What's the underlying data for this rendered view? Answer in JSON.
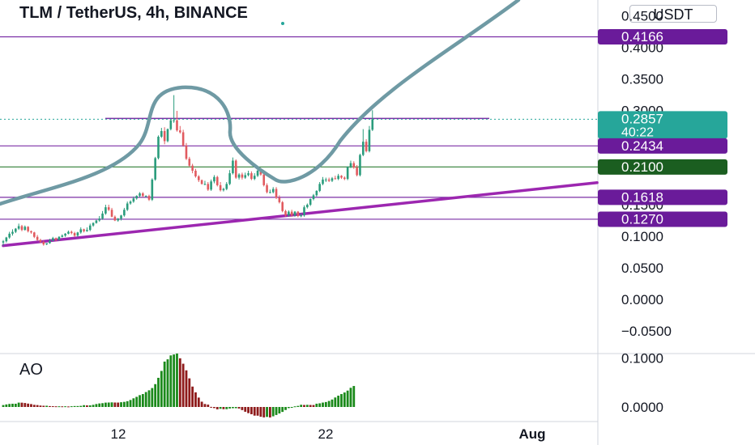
{
  "header": {
    "title": "TLM / TetherUS, 4h, BINANCE",
    "currency": "USDT",
    "indicator": "AO"
  },
  "colors": {
    "up": "#26a69a",
    "down": "#ef5350",
    "candle_up": "#2a9c7c",
    "candle_down": "#e15a5f",
    "purple_line": "#7b2fa6",
    "green_line": "#2e7d32",
    "trend_line": "#9c27b0",
    "drawing": "#6f9aa4",
    "ao_up": "#1b8a1b",
    "ao_down": "#8e1b1b"
  },
  "chart_data": [
    {
      "type": "candlestick",
      "title": "TLM / TetherUS, 4h, BINANCE",
      "ylim": [
        -0.085,
        0.475
      ],
      "y_ticks": [
        "0.4500",
        "0.4000",
        "0.3500",
        "0.3000",
        "0.1500",
        "0.1000",
        "0.0500",
        "0.0000",
        "−0.0500"
      ],
      "x_ticks": [
        "12",
        "22",
        "Aug"
      ],
      "price_labels": [
        {
          "value": 0.4166,
          "text": "0.4166",
          "style": "purple"
        },
        {
          "value": 0.2857,
          "text": "0.2857",
          "sub": "40:22",
          "style": "teal"
        },
        {
          "value": 0.2434,
          "text": "0.2434",
          "style": "purple"
        },
        {
          "value": 0.21,
          "text": "0.2100",
          "style": "green"
        },
        {
          "value": 0.1618,
          "text": "0.1618",
          "style": "purple"
        },
        {
          "value": 0.127,
          "text": "0.1270",
          "style": "purple"
        }
      ],
      "horizontal_lines": [
        {
          "value": 0.4166,
          "color": "purple"
        },
        {
          "value": 0.2434,
          "color": "purple"
        },
        {
          "value": 0.21,
          "color": "green"
        },
        {
          "value": 0.1618,
          "color": "purple"
        },
        {
          "value": 0.127,
          "color": "purple"
        }
      ],
      "neckline": 0.287,
      "current_price": 0.2857,
      "trendline": [
        [
          0,
          0.085
        ],
        [
          123,
          0.185
        ]
      ],
      "candles_open": [
        0.09,
        0.092,
        0.098,
        0.104,
        0.107,
        0.112,
        0.116,
        0.11,
        0.115,
        0.108,
        0.106,
        0.099,
        0.094,
        0.091,
        0.087,
        0.089,
        0.093,
        0.097,
        0.094,
        0.099,
        0.101,
        0.104,
        0.107,
        0.105,
        0.101,
        0.106,
        0.111,
        0.108,
        0.11,
        0.117,
        0.121,
        0.125,
        0.128,
        0.136,
        0.146,
        0.142,
        0.131,
        0.125,
        0.128,
        0.133,
        0.142,
        0.152,
        0.155,
        0.16,
        0.164,
        0.168,
        0.164,
        0.164,
        0.158,
        0.19,
        0.224,
        0.258,
        0.267,
        0.251,
        0.27,
        0.284,
        0.284,
        0.268,
        0.265,
        0.244,
        0.223,
        0.212,
        0.204,
        0.195,
        0.189,
        0.183,
        0.183,
        0.174,
        0.187,
        0.194,
        0.181,
        0.173,
        0.175,
        0.183,
        0.2,
        0.22,
        0.193,
        0.198,
        0.193,
        0.197,
        0.2,
        0.191,
        0.196,
        0.204,
        0.198,
        0.181,
        0.17,
        0.17,
        0.175,
        0.161,
        0.154,
        0.14,
        0.133,
        0.139,
        0.133,
        0.139,
        0.132,
        0.133,
        0.146,
        0.15,
        0.159,
        0.165,
        0.172,
        0.183,
        0.19,
        0.19,
        0.188,
        0.192,
        0.191,
        0.196,
        0.193,
        0.191,
        0.21,
        0.216,
        0.209,
        0.197,
        0.229,
        0.25,
        0.235,
        0.269
      ],
      "candles_close": [
        0.092,
        0.098,
        0.104,
        0.107,
        0.112,
        0.116,
        0.11,
        0.115,
        0.108,
        0.106,
        0.099,
        0.094,
        0.091,
        0.087,
        0.089,
        0.093,
        0.097,
        0.094,
        0.099,
        0.101,
        0.104,
        0.107,
        0.105,
        0.101,
        0.106,
        0.111,
        0.108,
        0.11,
        0.117,
        0.121,
        0.125,
        0.128,
        0.136,
        0.146,
        0.142,
        0.131,
        0.125,
        0.128,
        0.133,
        0.142,
        0.152,
        0.155,
        0.16,
        0.164,
        0.168,
        0.164,
        0.164,
        0.158,
        0.19,
        0.224,
        0.258,
        0.267,
        0.251,
        0.27,
        0.284,
        0.284,
        0.268,
        0.265,
        0.244,
        0.223,
        0.212,
        0.204,
        0.195,
        0.189,
        0.183,
        0.183,
        0.174,
        0.187,
        0.194,
        0.181,
        0.173,
        0.175,
        0.183,
        0.2,
        0.22,
        0.193,
        0.198,
        0.193,
        0.197,
        0.2,
        0.191,
        0.196,
        0.204,
        0.198,
        0.181,
        0.17,
        0.17,
        0.175,
        0.161,
        0.154,
        0.14,
        0.133,
        0.139,
        0.133,
        0.139,
        0.132,
        0.133,
        0.146,
        0.15,
        0.159,
        0.165,
        0.172,
        0.183,
        0.19,
        0.19,
        0.188,
        0.192,
        0.191,
        0.196,
        0.193,
        0.191,
        0.21,
        0.216,
        0.209,
        0.197,
        0.229,
        0.25,
        0.235,
        0.269,
        0.2857
      ],
      "candles_high": [
        0.094,
        0.099,
        0.107,
        0.111,
        0.113,
        0.12,
        0.118,
        0.117,
        0.116,
        0.109,
        0.107,
        0.102,
        0.096,
        0.093,
        0.089,
        0.096,
        0.099,
        0.098,
        0.1,
        0.103,
        0.105,
        0.109,
        0.109,
        0.107,
        0.107,
        0.114,
        0.112,
        0.114,
        0.12,
        0.122,
        0.126,
        0.132,
        0.14,
        0.15,
        0.15,
        0.145,
        0.133,
        0.129,
        0.134,
        0.145,
        0.155,
        0.157,
        0.163,
        0.165,
        0.17,
        0.17,
        0.165,
        0.166,
        0.192,
        0.226,
        0.26,
        0.272,
        0.273,
        0.271,
        0.286,
        0.324,
        0.299,
        0.275,
        0.269,
        0.248,
        0.226,
        0.215,
        0.207,
        0.197,
        0.19,
        0.188,
        0.186,
        0.19,
        0.197,
        0.196,
        0.186,
        0.177,
        0.186,
        0.205,
        0.225,
        0.222,
        0.2,
        0.201,
        0.201,
        0.204,
        0.203,
        0.2,
        0.209,
        0.208,
        0.2,
        0.184,
        0.174,
        0.178,
        0.178,
        0.165,
        0.156,
        0.142,
        0.141,
        0.142,
        0.14,
        0.14,
        0.136,
        0.149,
        0.152,
        0.16,
        0.167,
        0.173,
        0.186,
        0.194,
        0.193,
        0.193,
        0.194,
        0.196,
        0.199,
        0.197,
        0.195,
        0.211,
        0.22,
        0.219,
        0.213,
        0.231,
        0.27,
        0.254,
        0.275,
        0.3
      ],
      "candles_low": [
        0.085,
        0.09,
        0.096,
        0.101,
        0.105,
        0.11,
        0.108,
        0.109,
        0.106,
        0.104,
        0.097,
        0.093,
        0.089,
        0.085,
        0.086,
        0.088,
        0.092,
        0.092,
        0.093,
        0.098,
        0.099,
        0.103,
        0.103,
        0.099,
        0.099,
        0.104,
        0.106,
        0.107,
        0.108,
        0.115,
        0.12,
        0.123,
        0.126,
        0.134,
        0.14,
        0.13,
        0.124,
        0.123,
        0.125,
        0.131,
        0.14,
        0.15,
        0.153,
        0.158,
        0.162,
        0.162,
        0.162,
        0.156,
        0.156,
        0.188,
        0.222,
        0.256,
        0.246,
        0.249,
        0.268,
        0.28,
        0.266,
        0.263,
        0.242,
        0.221,
        0.21,
        0.2,
        0.193,
        0.186,
        0.182,
        0.181,
        0.172,
        0.172,
        0.184,
        0.179,
        0.171,
        0.171,
        0.173,
        0.181,
        0.198,
        0.191,
        0.19,
        0.19,
        0.191,
        0.195,
        0.189,
        0.189,
        0.194,
        0.196,
        0.179,
        0.168,
        0.168,
        0.168,
        0.159,
        0.152,
        0.138,
        0.131,
        0.131,
        0.131,
        0.131,
        0.13,
        0.13,
        0.131,
        0.144,
        0.148,
        0.157,
        0.163,
        0.17,
        0.181,
        0.186,
        0.186,
        0.186,
        0.19,
        0.189,
        0.191,
        0.189,
        0.189,
        0.208,
        0.207,
        0.195,
        0.195,
        0.227,
        0.233,
        0.233,
        0.267
      ]
    },
    {
      "type": "bar",
      "title": "AO",
      "ylim": [
        -0.0215,
        0.1075
      ],
      "y_ticks": [
        "0.1000",
        "0.0000"
      ],
      "values": [
        0.0039,
        0.0052,
        0.0062,
        0.0066,
        0.0066,
        0.0089,
        0.0088,
        0.0081,
        0.0069,
        0.0059,
        0.0044,
        0.0039,
        0.0029,
        0.0025,
        0.0025,
        0.0018,
        0.0016,
        0.0014,
        0.0014,
        0.0013,
        0.0014,
        0.0011,
        0.0015,
        0.0019,
        0.0019,
        0.0023,
        0.0037,
        0.0032,
        0.0033,
        0.0044,
        0.006,
        0.0072,
        0.0078,
        0.0089,
        0.0091,
        0.0094,
        0.0091,
        0.009,
        0.0097,
        0.0104,
        0.0118,
        0.0143,
        0.0177,
        0.0207,
        0.0242,
        0.0264,
        0.0305,
        0.0341,
        0.0387,
        0.0467,
        0.0596,
        0.0737,
        0.0928,
        0.0974,
        0.1054,
        0.1073,
        0.1093,
        0.0995,
        0.0884,
        0.0749,
        0.0585,
        0.0417,
        0.0299,
        0.0192,
        0.0108,
        0.0061,
        0.0048,
        0.0002,
        -0.0023,
        -0.0048,
        -0.0038,
        -0.0045,
        -0.0045,
        -0.0031,
        -0.0025,
        -0.0025,
        -0.0032,
        -0.0064,
        -0.0098,
        -0.0126,
        -0.0148,
        -0.0177,
        -0.0178,
        -0.02,
        -0.0213,
        -0.0203,
        -0.0214,
        -0.0191,
        -0.0164,
        -0.0133,
        -0.0101,
        -0.0062,
        -0.0023,
        -0.0008,
        0.0013,
        0.0022,
        0.0045,
        0.0041,
        0.0044,
        0.0041,
        0.004,
        0.0067,
        0.0075,
        0.009,
        0.0101,
        0.0123,
        0.0152,
        0.0194,
        0.0231,
        0.0264,
        0.0296,
        0.0335,
        0.0392,
        0.0429
      ]
    }
  ]
}
